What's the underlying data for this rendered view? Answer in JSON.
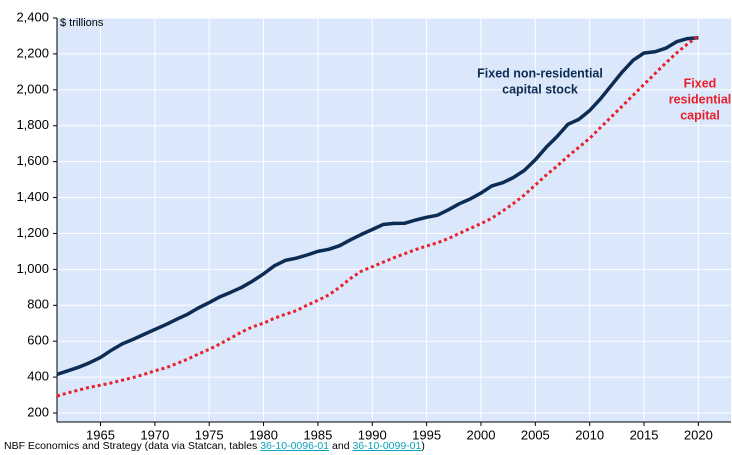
{
  "chart_data": {
    "type": "line",
    "y_unit_label": "$ trillions",
    "x": [
      1961,
      1962,
      1963,
      1964,
      1965,
      1966,
      1967,
      1968,
      1969,
      1970,
      1971,
      1972,
      1973,
      1974,
      1975,
      1976,
      1977,
      1978,
      1979,
      1980,
      1981,
      1982,
      1983,
      1984,
      1985,
      1986,
      1987,
      1988,
      1989,
      1990,
      1991,
      1992,
      1993,
      1994,
      1995,
      1996,
      1997,
      1998,
      1999,
      2000,
      2001,
      2002,
      2003,
      2004,
      2005,
      2006,
      2007,
      2008,
      2009,
      2010,
      2011,
      2012,
      2013,
      2014,
      2015,
      2016,
      2017,
      2018,
      2019,
      2020
    ],
    "series": [
      {
        "name": "Fixed non-residential capital stock",
        "color": "#0d2c54",
        "style": "solid",
        "values": [
          415,
          435,
          455,
          480,
          510,
          550,
          585,
          610,
          638,
          665,
          692,
          722,
          750,
          785,
          815,
          848,
          873,
          900,
          935,
          975,
          1020,
          1050,
          1062,
          1080,
          1100,
          1112,
          1132,
          1165,
          1195,
          1222,
          1250,
          1256,
          1257,
          1275,
          1290,
          1302,
          1332,
          1365,
          1392,
          1425,
          1465,
          1483,
          1512,
          1552,
          1610,
          1680,
          1740,
          1808,
          1835,
          1885,
          1950,
          2025,
          2100,
          2165,
          2205,
          2212,
          2232,
          2268,
          2285,
          2290
        ]
      },
      {
        "name": "Fixed residential capital",
        "color": "#e8202a",
        "style": "dotted",
        "values": [
          295,
          312,
          328,
          343,
          355,
          368,
          383,
          398,
          415,
          435,
          452,
          475,
          500,
          528,
          555,
          585,
          618,
          652,
          680,
          700,
          728,
          750,
          770,
          800,
          828,
          858,
          900,
          950,
          990,
          1015,
          1040,
          1065,
          1088,
          1110,
          1130,
          1148,
          1172,
          1200,
          1228,
          1255,
          1285,
          1325,
          1368,
          1415,
          1470,
          1525,
          1575,
          1630,
          1680,
          1730,
          1790,
          1850,
          1910,
          1970,
          2030,
          2090,
          2150,
          2205,
          2255,
          2300
        ]
      }
    ],
    "annotations": [
      {
        "lines": [
          "Fixed non-residential",
          "capital stock"
        ],
        "color": "#0d2c54"
      },
      {
        "lines": [
          "Fixed",
          "residential",
          "capital"
        ],
        "color": "#e8202a"
      }
    ],
    "xlim": [
      1961,
      2023
    ],
    "xticks": [
      1965,
      1970,
      1975,
      1980,
      1985,
      1990,
      1995,
      2000,
      2005,
      2010,
      2015,
      2020
    ],
    "ylim": [
      150,
      2400
    ],
    "yticks": [
      200,
      400,
      600,
      800,
      {
        "value": 1000,
        "label": "1,000"
      },
      {
        "value": 1200,
        "label": "1,200"
      },
      {
        "value": 1400,
        "label": "1,400"
      },
      {
        "value": 1600,
        "label": "1,600"
      },
      {
        "value": 1800,
        "label": "1,800"
      },
      {
        "value": 2000,
        "label": "2,000"
      },
      {
        "value": 2200,
        "label": "2,200"
      },
      {
        "value": 2400,
        "label": "2,400"
      }
    ],
    "grid": true,
    "background": "#dbe7fa",
    "source": {
      "prefix": "NBF Economics and Strategy (data via Statcan, tables ",
      "links": [
        "36-10-0096-01",
        "36-10-0099-01"
      ],
      "joiner": " and ",
      "suffix": ")"
    }
  }
}
